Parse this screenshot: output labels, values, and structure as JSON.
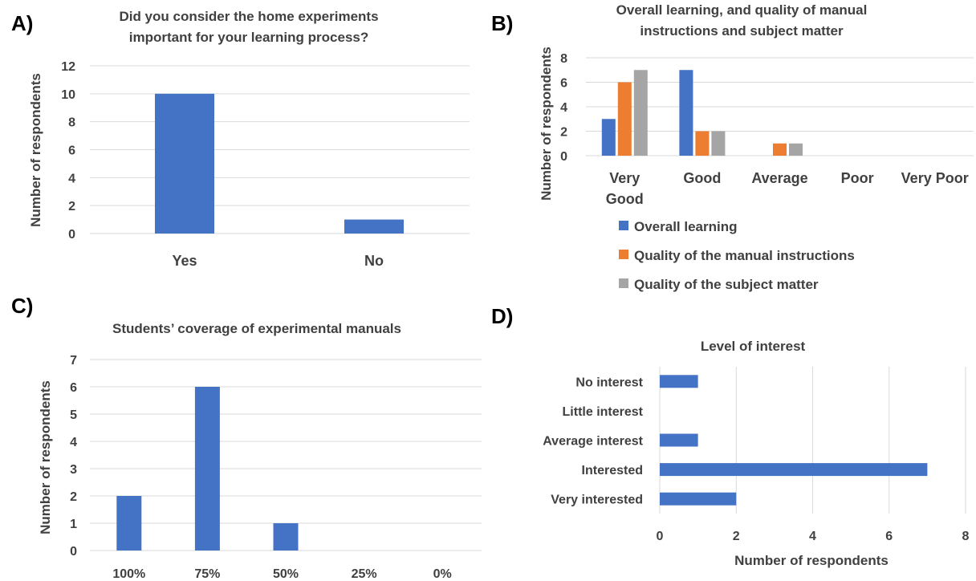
{
  "chart_data": [
    {
      "panel": "A)",
      "type": "bar",
      "title_lines": [
        "Did you consider the home experiments",
        "important for your learning process?"
      ],
      "categories": [
        "Yes",
        "No"
      ],
      "values": [
        10,
        1
      ],
      "ylabel": "Number of respondents",
      "ylim": [
        0,
        12
      ],
      "yticks": [
        0,
        2,
        4,
        6,
        8,
        10,
        12
      ],
      "grid": true,
      "color": "#4472C4"
    },
    {
      "panel": "B)",
      "type": "bar",
      "title_lines": [
        "Overall learning, and quality of manual",
        "instructions and subject matter"
      ],
      "categories": [
        "Very Good",
        "Good",
        "Average",
        "Poor",
        "Very Poor"
      ],
      "category_lines": [
        [
          "Very",
          "Good"
        ],
        [
          "Good"
        ],
        [
          "Average"
        ],
        [
          "Poor"
        ],
        [
          "Very Poor"
        ]
      ],
      "series": [
        {
          "name": "Overall learning",
          "values": [
            3,
            7,
            0,
            0,
            0
          ],
          "color": "#4472C4"
        },
        {
          "name": "Quality of the manual instructions",
          "values": [
            6,
            2,
            1,
            0,
            0
          ],
          "color": "#ED7D31"
        },
        {
          "name": "Quality of the subject matter",
          "values": [
            7,
            2,
            1,
            0,
            0
          ],
          "color": "#A5A5A5"
        }
      ],
      "ylabel": "Number of respondents",
      "ylim": [
        0,
        8
      ],
      "yticks": [
        0,
        2,
        4,
        6,
        8
      ],
      "grid": true,
      "legend": "bottom"
    },
    {
      "panel": "C)",
      "type": "bar",
      "title_lines": [
        "Students’ coverage of experimental manuals"
      ],
      "categories": [
        "100%",
        "75%",
        "50%",
        "25%",
        "0%"
      ],
      "values": [
        2,
        6,
        1,
        0,
        0
      ],
      "ylabel": "Number of respondents",
      "ylim": [
        0,
        7
      ],
      "yticks": [
        0,
        1,
        2,
        3,
        4,
        5,
        6,
        7
      ],
      "grid": true,
      "color": "#4472C4"
    },
    {
      "panel": "D)",
      "type": "bar",
      "orientation": "horizontal",
      "title_lines": [
        "Level of interest"
      ],
      "categories": [
        "No interest",
        "Little interest",
        "Average interest",
        "Interested",
        "Very interested"
      ],
      "values": [
        1,
        0,
        1,
        7,
        2
      ],
      "xlabel": "Number of respondents",
      "xlim": [
        0,
        8
      ],
      "xticks": [
        0,
        2,
        4,
        6,
        8
      ],
      "grid": true,
      "color": "#4472C4"
    }
  ]
}
